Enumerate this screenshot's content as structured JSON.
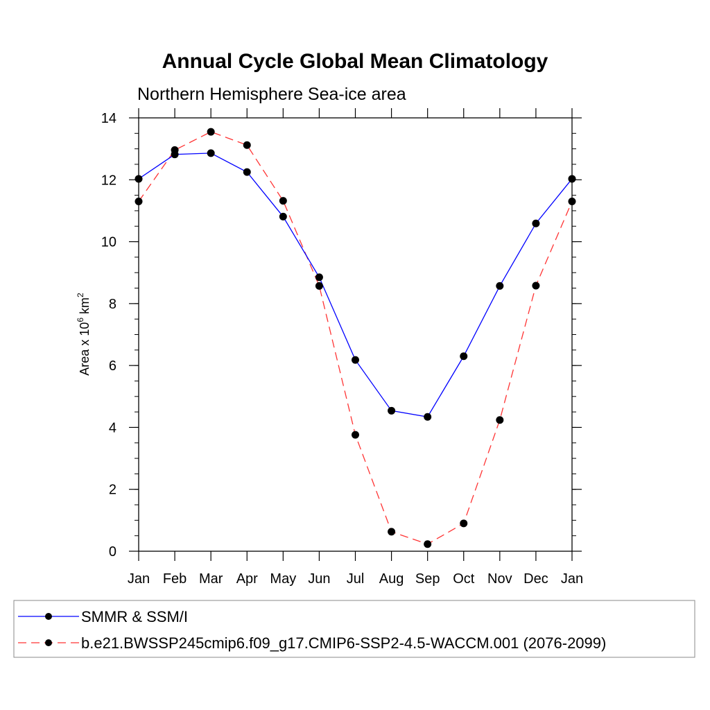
{
  "chart_data": {
    "type": "line",
    "title": "Annual Cycle Global Mean Climatology",
    "subtitle": "Northern Hemisphere Sea-ice area",
    "ylabel": {
      "prefix": "Area x 10",
      "exponent1": "6",
      "mid": " km",
      "exponent2": "2"
    },
    "xlabel": "",
    "categories": [
      "Jan",
      "Feb",
      "Mar",
      "Apr",
      "May",
      "Jun",
      "Jul",
      "Aug",
      "Sep",
      "Oct",
      "Nov",
      "Dec",
      "Jan"
    ],
    "ylim": [
      0,
      14
    ],
    "yticks": [
      "0",
      "2",
      "4",
      "6",
      "8",
      "10",
      "12",
      "14"
    ],
    "series": [
      {
        "name": "SMMR & SSM/I",
        "color": "#0000ff",
        "dashed": false,
        "values": [
          12.03,
          12.82,
          12.86,
          12.25,
          10.81,
          8.85,
          6.18,
          4.54,
          4.34,
          6.3,
          8.57,
          10.59,
          12.03
        ]
      },
      {
        "name": "b.e21.BWSSP245cmip6.f09_g17.CMIP6-SSP2-4.5-WACCM.001 (2076-2099)",
        "color": "#ff3333",
        "dashed": true,
        "values": [
          11.3,
          12.96,
          13.55,
          13.12,
          11.32,
          8.57,
          3.76,
          0.63,
          0.23,
          0.9,
          4.24,
          8.58,
          11.3
        ]
      }
    ],
    "grid": false,
    "legend": "bottom"
  }
}
